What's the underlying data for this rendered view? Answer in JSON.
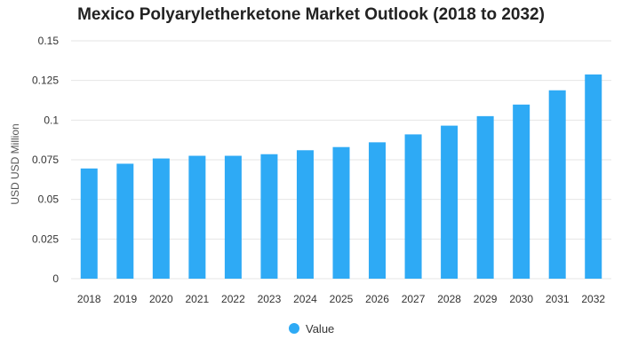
{
  "chart_data": {
    "type": "bar",
    "title": "Mexico Polyaryletherketone Market Outlook (2018 to 2032)",
    "xlabel": "",
    "ylabel": "USD USD Million",
    "categories": [
      "2018",
      "2019",
      "2020",
      "2021",
      "2022",
      "2023",
      "2024",
      "2025",
      "2026",
      "2027",
      "2028",
      "2029",
      "2030",
      "2031",
      "2032"
    ],
    "series": [
      {
        "name": "Value",
        "color": "#2eaaf5",
        "values": [
          0.0695,
          0.0725,
          0.0758,
          0.0775,
          0.0775,
          0.0785,
          0.081,
          0.083,
          0.086,
          0.091,
          0.0965,
          0.1025,
          0.1098,
          0.1188,
          0.1288
        ]
      }
    ],
    "ylim": [
      0,
      0.15
    ],
    "yticks": [
      0,
      0.025,
      0.05,
      0.075,
      0.1,
      0.125,
      0.15
    ],
    "ytick_labels": [
      "0",
      "0.025",
      "0.05",
      "0.075",
      "0.1",
      "0.125",
      "0.15"
    ],
    "grid": true,
    "legend_position": "bottom-center"
  }
}
